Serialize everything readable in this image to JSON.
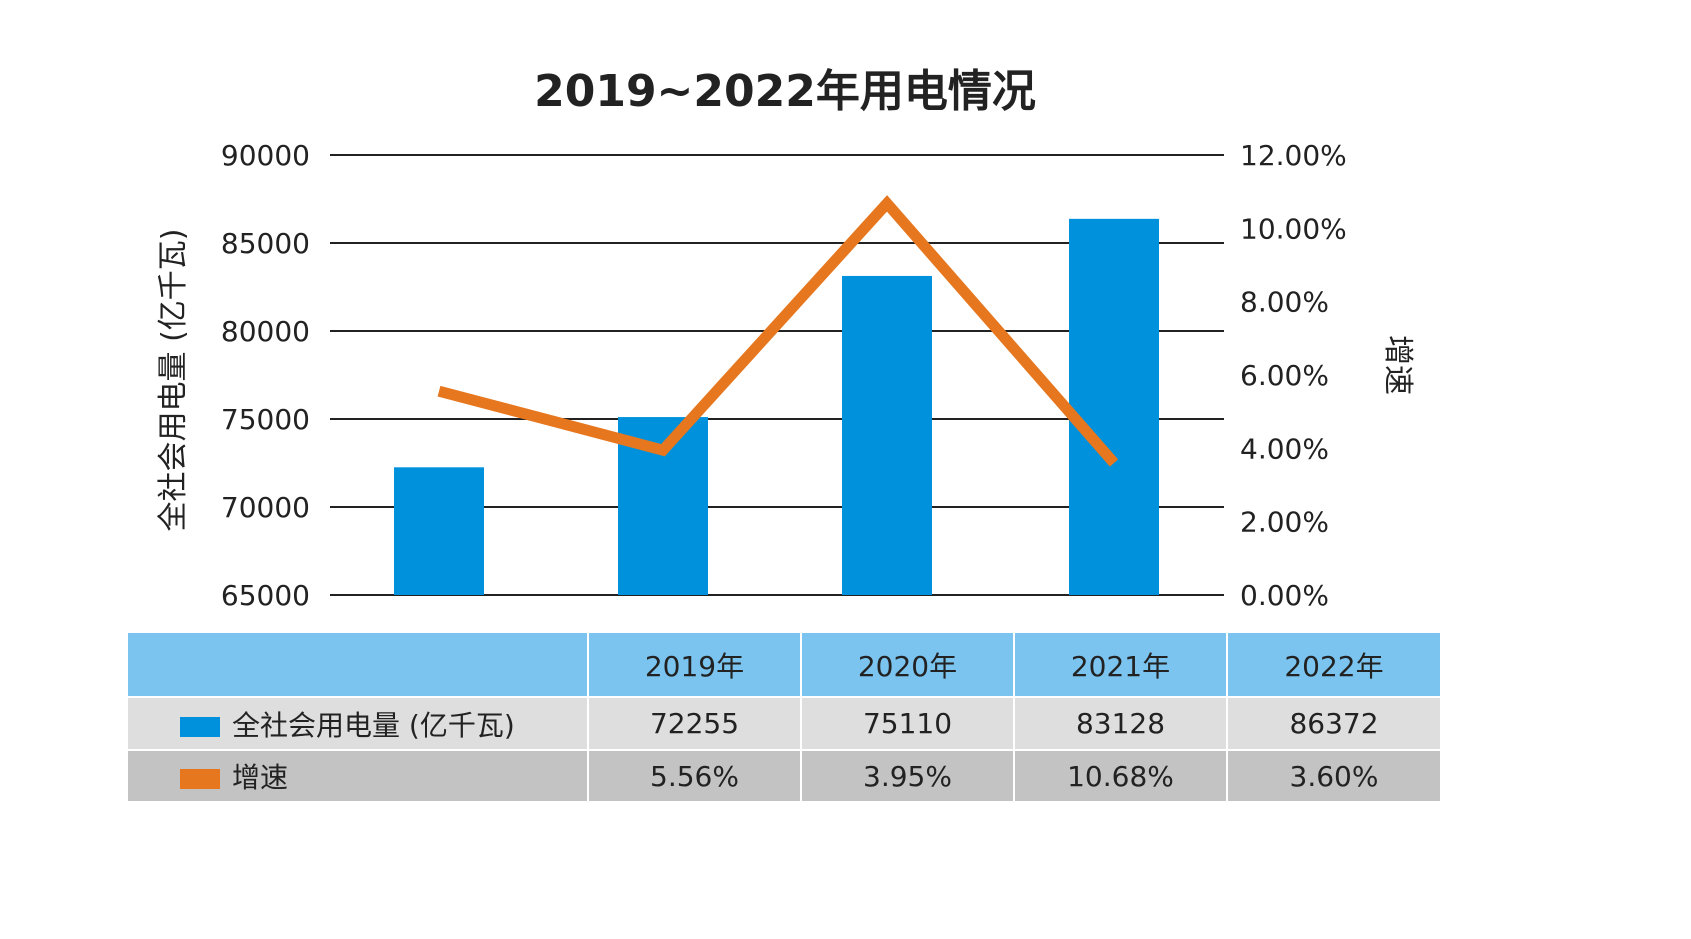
{
  "chart_data": {
    "type": "bar+line",
    "title": "2019~2022年用电情况",
    "categories": [
      "2019年",
      "2020年",
      "2021年",
      "2022年"
    ],
    "ylabel": "全社会用电量 (亿千瓦)",
    "y2label": "增速",
    "ylim": [
      65000,
      90000
    ],
    "y2lim": [
      0,
      12
    ],
    "yticks": [
      "90000",
      "85000",
      "80000",
      "75000",
      "70000",
      "65000"
    ],
    "y2ticks": [
      "12.00%",
      "10.00%",
      "8.00%",
      "6.00%",
      "4.00%",
      "2.00%",
      "0.00%"
    ],
    "grid": true,
    "series": [
      {
        "name": "全社会用电量 (亿千瓦)",
        "type": "bar",
        "color": "#0091dc",
        "values": [
          72255,
          75110,
          83128,
          86372
        ],
        "labels": [
          "72255",
          "75110",
          "83128",
          "86372"
        ]
      },
      {
        "name": "增速",
        "type": "line",
        "color": "#e6771e",
        "values": [
          5.56,
          3.95,
          10.68,
          3.6
        ],
        "labels": [
          "5.56%",
          "3.95%",
          "10.68%",
          "3.60%"
        ]
      }
    ]
  }
}
